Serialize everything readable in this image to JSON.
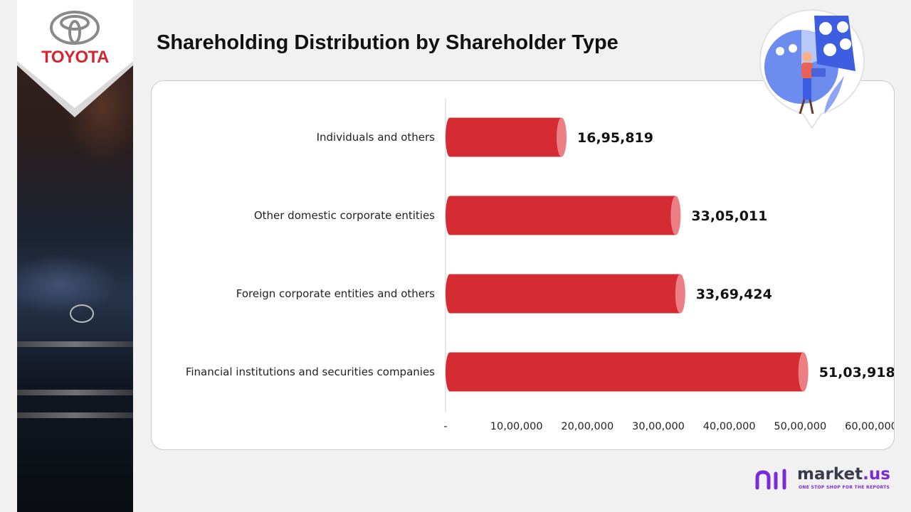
{
  "brand": {
    "name": "TOYOTA"
  },
  "page": {
    "title": "Shareholding Distribution by Shareholder Type"
  },
  "colors": {
    "bar": "#d52b33",
    "bar_cap": "#ec7f84",
    "brand_red": "#d22630",
    "accent_purple": "#7b2bd6"
  },
  "chart_data": {
    "type": "bar",
    "orientation": "horizontal",
    "categories": [
      "Individuals and others",
      "Other domestic corporate entities",
      "Foreign corporate entities and others",
      "Financial institutions and securities companies"
    ],
    "values": [
      1695819,
      3305011,
      3369424,
      5103918
    ],
    "value_labels": [
      "16,95,819",
      "33,05,011",
      "33,69,424",
      "51,03,918"
    ],
    "xlim": [
      0,
      6000000
    ],
    "x_ticks": [
      0,
      1000000,
      2000000,
      3000000,
      4000000,
      5000000,
      6000000
    ],
    "x_tick_labels": [
      "-",
      "10,00,000",
      "20,00,000",
      "30,00,000",
      "40,00,000",
      "50,00,000",
      "60,00,000"
    ],
    "grid": false,
    "legend": "none"
  },
  "footer": {
    "logo_text": "market",
    "logo_suffix": ".us",
    "tagline": "ONE STOP SHOP FOR THE REPORTS"
  }
}
